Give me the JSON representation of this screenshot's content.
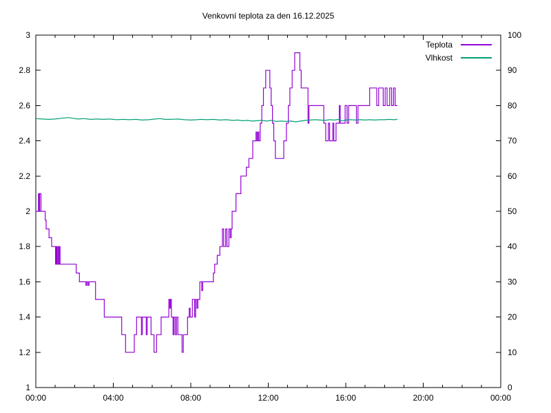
{
  "chart_data": {
    "type": "line",
    "title": "Venkovní teplota za den 16.12.2025",
    "grid": false,
    "legend_position": "top-right-inside",
    "x_axis": {
      "range_minutes": [
        0,
        1440
      ],
      "major_tick_minutes": [
        0,
        240,
        480,
        720,
        960,
        1200,
        1440
      ],
      "major_tick_labels": [
        "00:00",
        "04:00",
        "08:00",
        "12:00",
        "16:00",
        "20:00",
        "00:00"
      ],
      "minor_tick_every_minutes": 60
    },
    "y_axis_left": {
      "range": [
        1,
        3
      ],
      "tick_values": [
        1,
        1.2,
        1.4,
        1.6,
        1.8,
        2,
        2.2,
        2.4,
        2.6,
        2.8,
        3
      ],
      "tick_labels": [
        "1",
        "1.2",
        "1.4",
        "1.6",
        "1.8",
        "2",
        "2.2",
        "2.4",
        "2.6",
        "2.8",
        "3"
      ]
    },
    "y_axis_right": {
      "range": [
        0,
        100
      ],
      "tick_values": [
        0,
        10,
        20,
        30,
        40,
        50,
        60,
        70,
        80,
        90,
        100
      ],
      "tick_labels": [
        "0",
        "10",
        "20",
        "30",
        "40",
        "50",
        "60",
        "70",
        "80",
        "90",
        "100"
      ]
    },
    "series": [
      {
        "name": "Teplota",
        "color": "#9400d3",
        "axis": "left",
        "style": "steps",
        "points": [
          [
            0,
            2.0
          ],
          [
            8,
            2.1
          ],
          [
            10,
            2.0
          ],
          [
            12,
            2.1
          ],
          [
            16,
            2.0
          ],
          [
            29,
            1.95
          ],
          [
            32,
            1.9
          ],
          [
            41,
            1.85
          ],
          [
            49,
            1.8
          ],
          [
            61,
            1.7
          ],
          [
            63,
            1.8
          ],
          [
            65,
            1.7
          ],
          [
            68,
            1.8
          ],
          [
            70,
            1.7
          ],
          [
            73,
            1.8
          ],
          [
            75,
            1.7
          ],
          [
            125,
            1.65
          ],
          [
            135,
            1.6
          ],
          [
            155,
            1.58
          ],
          [
            158,
            1.6
          ],
          [
            162,
            1.58
          ],
          [
            165,
            1.6
          ],
          [
            185,
            1.5
          ],
          [
            212,
            1.4
          ],
          [
            266,
            1.3
          ],
          [
            278,
            1.2
          ],
          [
            305,
            1.3
          ],
          [
            312,
            1.4
          ],
          [
            327,
            1.3
          ],
          [
            330,
            1.4
          ],
          [
            342,
            1.3
          ],
          [
            345,
            1.4
          ],
          [
            357,
            1.3
          ],
          [
            366,
            1.2
          ],
          [
            374,
            1.3
          ],
          [
            388,
            1.4
          ],
          [
            412,
            1.5
          ],
          [
            415,
            1.45
          ],
          [
            417,
            1.5
          ],
          [
            420,
            1.4
          ],
          [
            425,
            1.3
          ],
          [
            428,
            1.4
          ],
          [
            432,
            1.3
          ],
          [
            436,
            1.4
          ],
          [
            440,
            1.3
          ],
          [
            453,
            1.2
          ],
          [
            457,
            1.3
          ],
          [
            470,
            1.4
          ],
          [
            475,
            1.45
          ],
          [
            478,
            1.4
          ],
          [
            485,
            1.5
          ],
          [
            492,
            1.4
          ],
          [
            495,
            1.5
          ],
          [
            499,
            1.45
          ],
          [
            502,
            1.5
          ],
          [
            508,
            1.6
          ],
          [
            514,
            1.55
          ],
          [
            517,
            1.6
          ],
          [
            550,
            1.65
          ],
          [
            554,
            1.7
          ],
          [
            562,
            1.75
          ],
          [
            570,
            1.8
          ],
          [
            578,
            1.9
          ],
          [
            582,
            1.8
          ],
          [
            588,
            1.9
          ],
          [
            592,
            1.8
          ],
          [
            598,
            1.9
          ],
          [
            602,
            1.85
          ],
          [
            605,
            1.9
          ],
          [
            608,
            2.0
          ],
          [
            620,
            2.1
          ],
          [
            635,
            2.2
          ],
          [
            652,
            2.25
          ],
          [
            660,
            2.3
          ],
          [
            672,
            2.4
          ],
          [
            682,
            2.45
          ],
          [
            685,
            2.4
          ],
          [
            688,
            2.45
          ],
          [
            691,
            2.4
          ],
          [
            695,
            2.5
          ],
          [
            700,
            2.6
          ],
          [
            705,
            2.7
          ],
          [
            712,
            2.8
          ],
          [
            725,
            2.7
          ],
          [
            729,
            2.6
          ],
          [
            733,
            2.5
          ],
          [
            737,
            2.4
          ],
          [
            742,
            2.3
          ],
          [
            768,
            2.4
          ],
          [
            776,
            2.5
          ],
          [
            782,
            2.6
          ],
          [
            787,
            2.7
          ],
          [
            794,
            2.8
          ],
          [
            802,
            2.9
          ],
          [
            818,
            2.8
          ],
          [
            822,
            2.7
          ],
          [
            843,
            2.5
          ],
          [
            846,
            2.6
          ],
          [
            892,
            2.5
          ],
          [
            898,
            2.4
          ],
          [
            906,
            2.5
          ],
          [
            910,
            2.4
          ],
          [
            920,
            2.5
          ],
          [
            923,
            2.4
          ],
          [
            930,
            2.5
          ],
          [
            940,
            2.6
          ],
          [
            943,
            2.5
          ],
          [
            952,
            2.5
          ],
          [
            958,
            2.6
          ],
          [
            964,
            2.5
          ],
          [
            969,
            2.6
          ],
          [
            993,
            2.5
          ],
          [
            998,
            2.6
          ],
          [
            1034,
            2.7
          ],
          [
            1056,
            2.6
          ],
          [
            1062,
            2.7
          ],
          [
            1076,
            2.6
          ],
          [
            1082,
            2.7
          ],
          [
            1088,
            2.6
          ],
          [
            1096,
            2.7
          ],
          [
            1102,
            2.6
          ],
          [
            1108,
            2.7
          ],
          [
            1113,
            2.6
          ],
          [
            1120,
            2.6
          ]
        ]
      },
      {
        "name": "Vlhkost",
        "color": "#009e73",
        "axis": "right",
        "style": "line",
        "points": [
          [
            0,
            76.3
          ],
          [
            20,
            76.2
          ],
          [
            40,
            76.1
          ],
          [
            60,
            76.2
          ],
          [
            80,
            76.4
          ],
          [
            100,
            76.6
          ],
          [
            115,
            76.4
          ],
          [
            130,
            76.2
          ],
          [
            150,
            76.3
          ],
          [
            170,
            76.1
          ],
          [
            190,
            76.2
          ],
          [
            210,
            76.1
          ],
          [
            230,
            76.2
          ],
          [
            250,
            76.0
          ],
          [
            270,
            76.1
          ],
          [
            290,
            76.0
          ],
          [
            310,
            76.1
          ],
          [
            330,
            75.9
          ],
          [
            350,
            76.0
          ],
          [
            370,
            76.2
          ],
          [
            385,
            76.3
          ],
          [
            400,
            76.1
          ],
          [
            420,
            76.1
          ],
          [
            440,
            76.2
          ],
          [
            460,
            76.0
          ],
          [
            480,
            75.9
          ],
          [
            500,
            76.0
          ],
          [
            510,
            76.1
          ],
          [
            530,
            76.0
          ],
          [
            550,
            76.1
          ],
          [
            570,
            75.9
          ],
          [
            590,
            76.0
          ],
          [
            610,
            75.8
          ],
          [
            625,
            75.9
          ],
          [
            640,
            75.7
          ],
          [
            655,
            75.8
          ],
          [
            670,
            75.6
          ],
          [
            685,
            75.7
          ],
          [
            700,
            75.8
          ],
          [
            715,
            75.6
          ],
          [
            730,
            75.8
          ],
          [
            745,
            75.5
          ],
          [
            760,
            75.6
          ],
          [
            775,
            75.5
          ],
          [
            790,
            75.6
          ],
          [
            805,
            75.4
          ],
          [
            820,
            75.6
          ],
          [
            835,
            75.8
          ],
          [
            850,
            75.9
          ],
          [
            865,
            76.0
          ],
          [
            880,
            75.9
          ],
          [
            895,
            75.8
          ],
          [
            910,
            76.0
          ],
          [
            925,
            75.9
          ],
          [
            940,
            76.1
          ],
          [
            950,
            75.6
          ],
          [
            960,
            75.9
          ],
          [
            975,
            76.0
          ],
          [
            990,
            75.9
          ],
          [
            1005,
            76.0
          ],
          [
            1020,
            75.9
          ],
          [
            1035,
            76.0
          ],
          [
            1050,
            75.9
          ],
          [
            1065,
            76.0
          ],
          [
            1080,
            76.0
          ],
          [
            1095,
            76.1
          ],
          [
            1110,
            76.0
          ],
          [
            1120,
            76.1
          ]
        ]
      }
    ]
  }
}
